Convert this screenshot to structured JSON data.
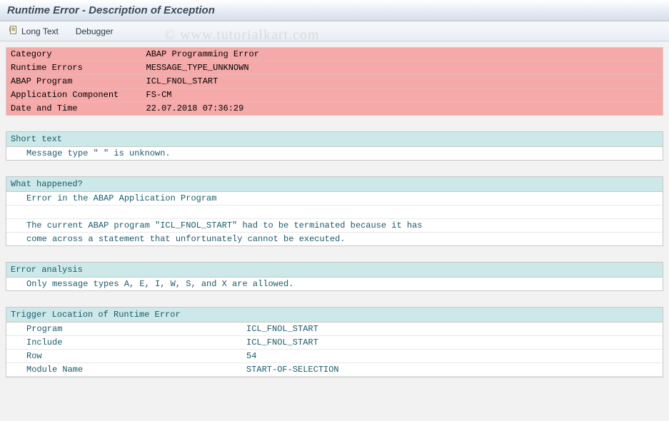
{
  "title": "Runtime Error - Description of Exception",
  "toolbar": {
    "long_text_label": "Long Text",
    "debugger_label": "Debugger"
  },
  "summary": {
    "rows": [
      {
        "label": "Category",
        "value": "ABAP Programming Error"
      },
      {
        "label": "Runtime Errors",
        "value": "MESSAGE_TYPE_UNKNOWN"
      },
      {
        "label": "ABAP Program",
        "value": "ICL_FNOL_START"
      },
      {
        "label": "Application Component",
        "value": "FS-CM"
      },
      {
        "label": "Date and Time",
        "value": "22.07.2018 07:36:29"
      }
    ],
    "bg_color": "#f5a9a9"
  },
  "sections": {
    "short_text": {
      "header": "Short text",
      "lines": [
        "Message type \" \" is unknown."
      ]
    },
    "what_happened": {
      "header": "What happened?",
      "lines": [
        "Error in the ABAP Application Program",
        "",
        "The current ABAP program \"ICL_FNOL_START\" had to be terminated because it has",
        "come across a statement that unfortunately cannot be executed."
      ]
    },
    "error_analysis": {
      "header": "Error analysis",
      "lines": [
        "Only message types A, E, I, W, S, and X are allowed."
      ]
    },
    "trigger_location": {
      "header": "Trigger Location of Runtime Error",
      "rows": [
        {
          "label": "Program",
          "value": "ICL_FNOL_START"
        },
        {
          "label": "Include",
          "value": "ICL_FNOL_START"
        },
        {
          "label": "Row",
          "value": "54"
        },
        {
          "label": "Module Name",
          "value": "START-OF-SELECTION"
        }
      ]
    }
  },
  "colors": {
    "section_header_bg": "#cce8e8",
    "section_text": "#1a5a6a",
    "page_bg": "#f2f2f2"
  },
  "watermark": "© www.tutorialkart.com"
}
